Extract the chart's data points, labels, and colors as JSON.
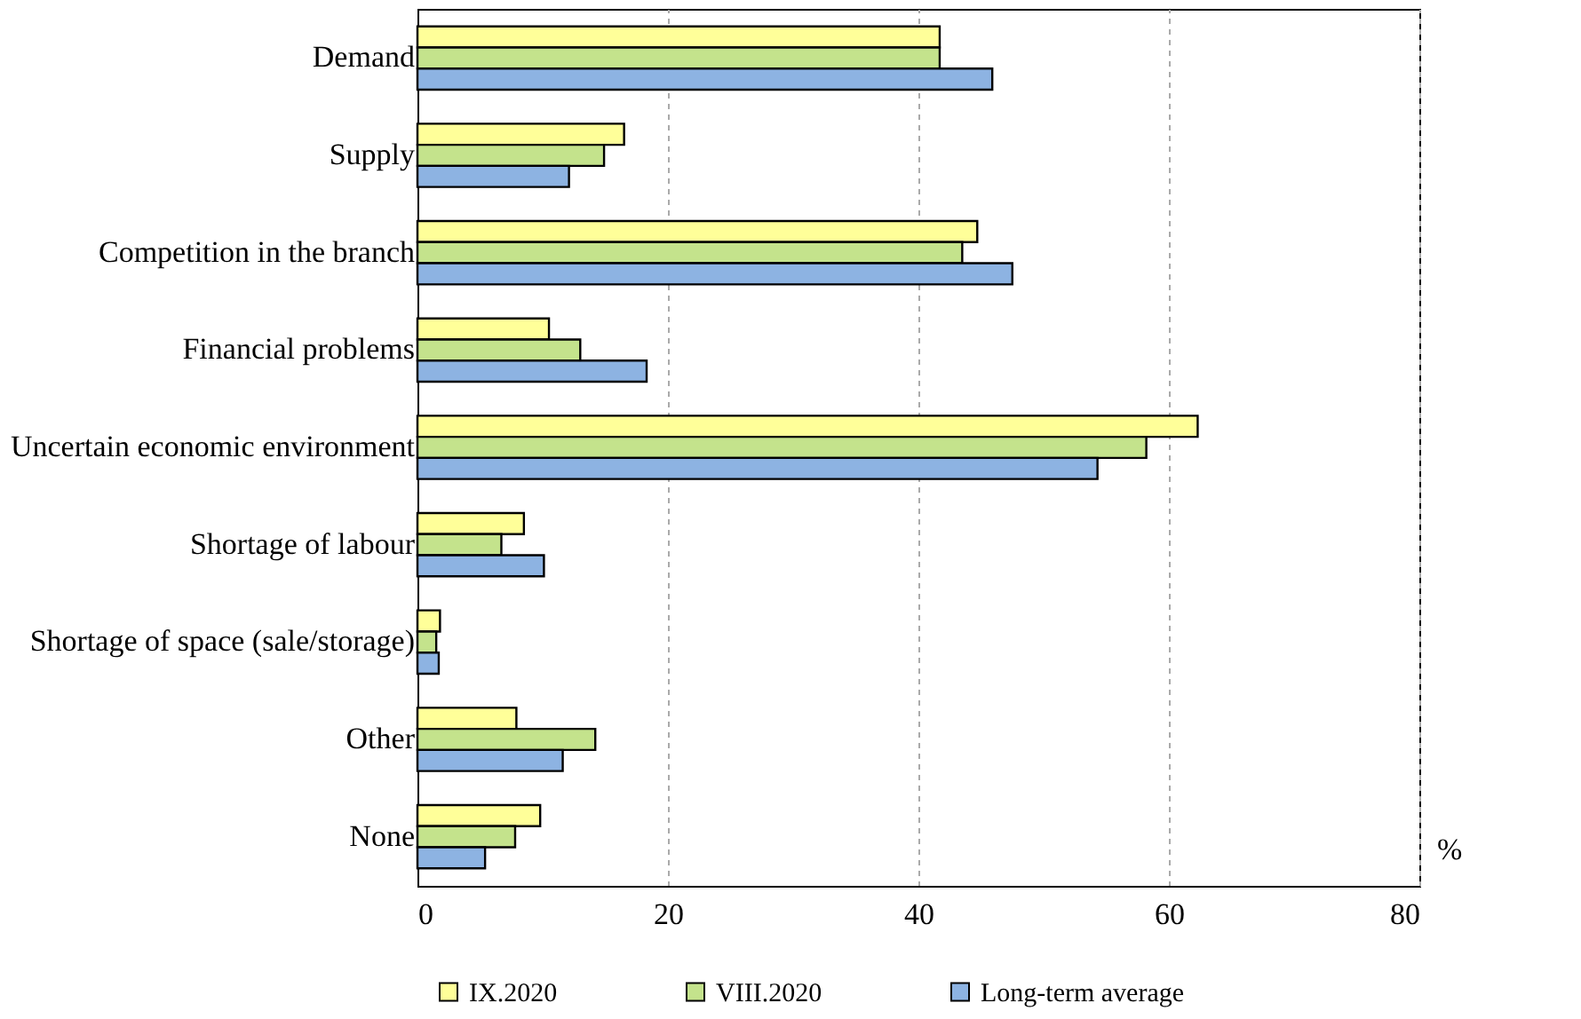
{
  "chart_data": {
    "type": "bar",
    "orientation": "horizontal",
    "categories": [
      "Demand",
      "Supply",
      "Competition in the branch",
      "Financial problems",
      "Uncertain economic environment",
      "Shortage of labour",
      "Shortage of space (sale/storage)",
      "Other",
      "None"
    ],
    "series": [
      {
        "name": "IX.2020",
        "color": "#ffff99",
        "values": [
          41.7,
          16.5,
          44.7,
          10.5,
          62.3,
          8.5,
          1.8,
          7.9,
          9.8
        ]
      },
      {
        "name": "VIII.2020",
        "color": "#c4e38c",
        "values": [
          41.7,
          14.9,
          43.5,
          13.0,
          58.2,
          6.7,
          1.5,
          14.2,
          7.8
        ]
      },
      {
        "name": "Long-term average",
        "color": "#8db3e2",
        "values": [
          45.9,
          12.1,
          47.5,
          18.3,
          54.3,
          10.1,
          1.7,
          11.6,
          5.4
        ]
      }
    ],
    "xlim": [
      0,
      80
    ],
    "xticks": [
      0,
      20,
      40,
      60,
      80
    ],
    "grid": "x",
    "legend": "bottom",
    "annotations": [
      "%"
    ]
  }
}
